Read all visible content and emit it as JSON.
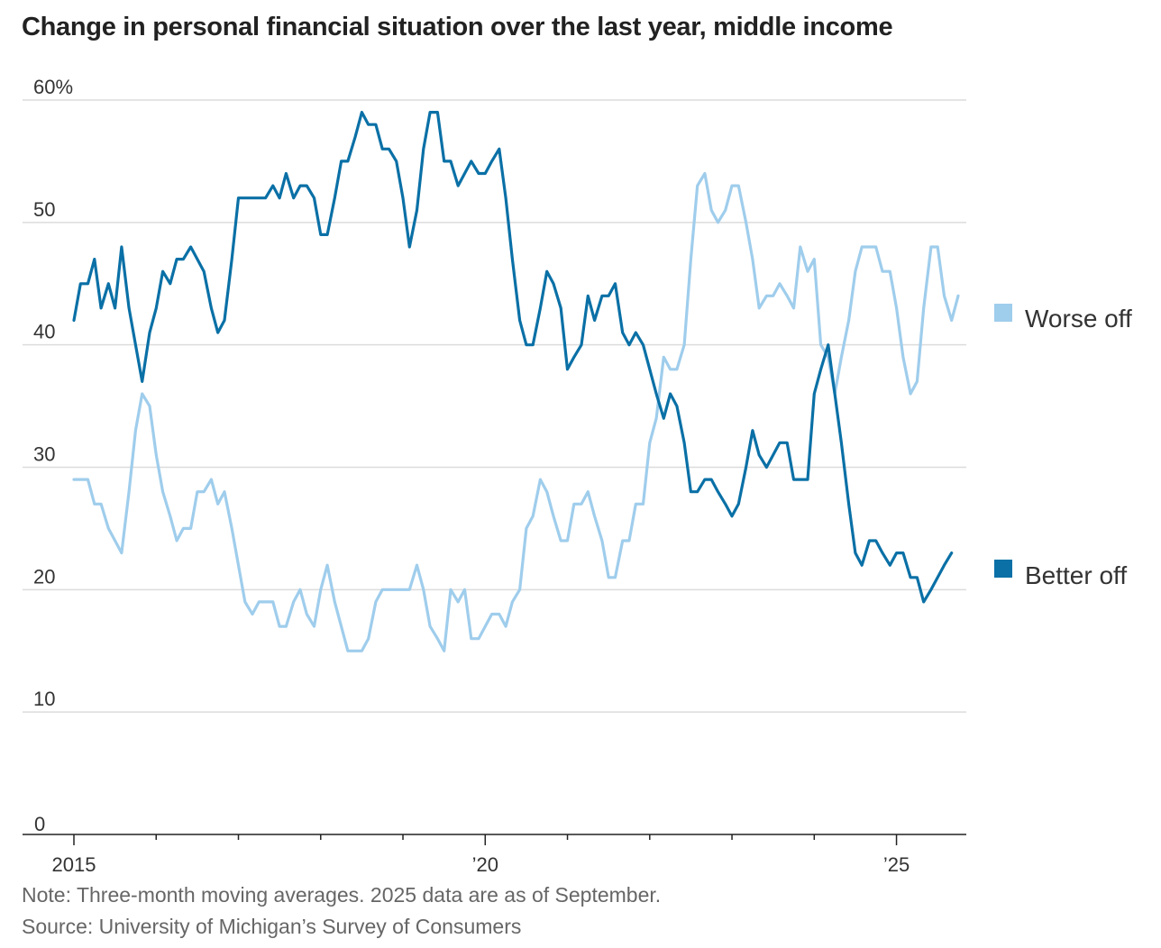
{
  "chart_data": {
    "type": "line",
    "title": "Change in personal financial situation over the last year, middle income",
    "note": "Note: Three-month moving averages. 2025 data are as of September.",
    "source": "Source: University of Michigan’s Survey of Consumers",
    "y_ticks": [
      "60%",
      "50",
      "40",
      "30",
      "20",
      "10",
      "0"
    ],
    "x_ticks": [
      "2015",
      "’20",
      "’25"
    ],
    "ylim": [
      0,
      60
    ],
    "xlim": [
      2015.0,
      2025.75
    ],
    "grid": true,
    "legend_position": "right",
    "series": [
      {
        "name": "Worse off",
        "color": "#9fcdec",
        "points": [
          [
            2015.0,
            29
          ],
          [
            2015.08,
            29
          ],
          [
            2015.17,
            29
          ],
          [
            2015.25,
            27
          ],
          [
            2015.33,
            27
          ],
          [
            2015.42,
            25
          ],
          [
            2015.5,
            24
          ],
          [
            2015.58,
            23
          ],
          [
            2015.67,
            28
          ],
          [
            2015.75,
            33
          ],
          [
            2015.83,
            36
          ],
          [
            2015.92,
            35
          ],
          [
            2016.0,
            31
          ],
          [
            2016.08,
            28
          ],
          [
            2016.17,
            26
          ],
          [
            2016.25,
            24
          ],
          [
            2016.33,
            25
          ],
          [
            2016.42,
            25
          ],
          [
            2016.5,
            28
          ],
          [
            2016.58,
            28
          ],
          [
            2016.67,
            29
          ],
          [
            2016.75,
            27
          ],
          [
            2016.83,
            28
          ],
          [
            2016.92,
            25
          ],
          [
            2017.0,
            22
          ],
          [
            2017.08,
            19
          ],
          [
            2017.17,
            18
          ],
          [
            2017.25,
            19
          ],
          [
            2017.33,
            19
          ],
          [
            2017.42,
            19
          ],
          [
            2017.5,
            17
          ],
          [
            2017.58,
            17
          ],
          [
            2017.67,
            19
          ],
          [
            2017.75,
            20
          ],
          [
            2017.83,
            18
          ],
          [
            2017.92,
            17
          ],
          [
            2018.0,
            20
          ],
          [
            2018.08,
            22
          ],
          [
            2018.17,
            19
          ],
          [
            2018.25,
            17
          ],
          [
            2018.33,
            15
          ],
          [
            2018.42,
            15
          ],
          [
            2018.5,
            15
          ],
          [
            2018.58,
            16
          ],
          [
            2018.67,
            19
          ],
          [
            2018.75,
            20
          ],
          [
            2018.83,
            20
          ],
          [
            2018.92,
            20
          ],
          [
            2019.0,
            20
          ],
          [
            2019.08,
            20
          ],
          [
            2019.17,
            22
          ],
          [
            2019.25,
            20
          ],
          [
            2019.33,
            17
          ],
          [
            2019.42,
            16
          ],
          [
            2019.5,
            15
          ],
          [
            2019.58,
            20
          ],
          [
            2019.67,
            19
          ],
          [
            2019.75,
            20
          ],
          [
            2019.83,
            16
          ],
          [
            2019.92,
            16
          ],
          [
            2020.0,
            17
          ],
          [
            2020.08,
            18
          ],
          [
            2020.17,
            18
          ],
          [
            2020.25,
            17
          ],
          [
            2020.33,
            19
          ],
          [
            2020.42,
            20
          ],
          [
            2020.5,
            25
          ],
          [
            2020.58,
            26
          ],
          [
            2020.67,
            29
          ],
          [
            2020.75,
            28
          ],
          [
            2020.83,
            26
          ],
          [
            2020.92,
            24
          ],
          [
            2021.0,
            24
          ],
          [
            2021.08,
            27
          ],
          [
            2021.17,
            27
          ],
          [
            2021.25,
            28
          ],
          [
            2021.33,
            26
          ],
          [
            2021.42,
            24
          ],
          [
            2021.5,
            21
          ],
          [
            2021.58,
            21
          ],
          [
            2021.67,
            24
          ],
          [
            2021.75,
            24
          ],
          [
            2021.83,
            27
          ],
          [
            2021.92,
            27
          ],
          [
            2022.0,
            32
          ],
          [
            2022.08,
            34
          ],
          [
            2022.17,
            39
          ],
          [
            2022.25,
            38
          ],
          [
            2022.33,
            38
          ],
          [
            2022.42,
            40
          ],
          [
            2022.5,
            47
          ],
          [
            2022.58,
            53
          ],
          [
            2022.67,
            54
          ],
          [
            2022.75,
            51
          ],
          [
            2022.83,
            50
          ],
          [
            2022.92,
            51
          ],
          [
            2023.0,
            53
          ],
          [
            2023.08,
            53
          ],
          [
            2023.17,
            50
          ],
          [
            2023.25,
            47
          ],
          [
            2023.33,
            43
          ],
          [
            2023.42,
            44
          ],
          [
            2023.5,
            44
          ],
          [
            2023.58,
            45
          ],
          [
            2023.67,
            44
          ],
          [
            2023.75,
            43
          ],
          [
            2023.83,
            48
          ],
          [
            2023.92,
            46
          ],
          [
            2024.0,
            47
          ],
          [
            2024.08,
            40
          ],
          [
            2024.17,
            39
          ],
          [
            2024.25,
            36
          ],
          [
            2024.33,
            39
          ],
          [
            2024.42,
            42
          ],
          [
            2024.5,
            46
          ],
          [
            2024.58,
            48
          ],
          [
            2024.67,
            48
          ],
          [
            2024.75,
            48
          ],
          [
            2024.83,
            46
          ],
          [
            2024.92,
            46
          ],
          [
            2025.0,
            43
          ],
          [
            2025.08,
            39
          ],
          [
            2025.17,
            36
          ],
          [
            2025.25,
            37
          ],
          [
            2025.33,
            43
          ],
          [
            2025.42,
            48
          ],
          [
            2025.5,
            48
          ],
          [
            2025.58,
            44
          ],
          [
            2025.67,
            42
          ],
          [
            2025.75,
            44
          ]
        ]
      },
      {
        "name": "Better off",
        "color": "#0a70a6",
        "points": [
          [
            2015.0,
            42
          ],
          [
            2015.08,
            45
          ],
          [
            2015.17,
            45
          ],
          [
            2015.25,
            47
          ],
          [
            2015.33,
            43
          ],
          [
            2015.42,
            45
          ],
          [
            2015.5,
            43
          ],
          [
            2015.58,
            48
          ],
          [
            2015.67,
            43
          ],
          [
            2015.75,
            40
          ],
          [
            2015.83,
            37
          ],
          [
            2015.92,
            41
          ],
          [
            2016.0,
            43
          ],
          [
            2016.08,
            46
          ],
          [
            2016.17,
            45
          ],
          [
            2016.25,
            47
          ],
          [
            2016.33,
            47
          ],
          [
            2016.42,
            48
          ],
          [
            2016.5,
            47
          ],
          [
            2016.58,
            46
          ],
          [
            2016.67,
            43
          ],
          [
            2016.75,
            41
          ],
          [
            2016.83,
            42
          ],
          [
            2016.92,
            47
          ],
          [
            2017.0,
            52
          ],
          [
            2017.08,
            52
          ],
          [
            2017.17,
            52
          ],
          [
            2017.25,
            52
          ],
          [
            2017.33,
            52
          ],
          [
            2017.42,
            53
          ],
          [
            2017.5,
            52
          ],
          [
            2017.58,
            54
          ],
          [
            2017.67,
            52
          ],
          [
            2017.75,
            53
          ],
          [
            2017.83,
            53
          ],
          [
            2017.92,
            52
          ],
          [
            2018.0,
            49
          ],
          [
            2018.08,
            49
          ],
          [
            2018.17,
            52
          ],
          [
            2018.25,
            55
          ],
          [
            2018.33,
            55
          ],
          [
            2018.42,
            57
          ],
          [
            2018.5,
            59
          ],
          [
            2018.58,
            58
          ],
          [
            2018.67,
            58
          ],
          [
            2018.75,
            56
          ],
          [
            2018.83,
            56
          ],
          [
            2018.92,
            55
          ],
          [
            2019.0,
            52
          ],
          [
            2019.08,
            48
          ],
          [
            2019.17,
            51
          ],
          [
            2019.25,
            56
          ],
          [
            2019.33,
            59
          ],
          [
            2019.42,
            59
          ],
          [
            2019.5,
            55
          ],
          [
            2019.58,
            55
          ],
          [
            2019.67,
            53
          ],
          [
            2019.75,
            54
          ],
          [
            2019.83,
            55
          ],
          [
            2019.92,
            54
          ],
          [
            2020.0,
            54
          ],
          [
            2020.08,
            55
          ],
          [
            2020.17,
            56
          ],
          [
            2020.25,
            52
          ],
          [
            2020.33,
            47
          ],
          [
            2020.42,
            42
          ],
          [
            2020.5,
            40
          ],
          [
            2020.58,
            40
          ],
          [
            2020.67,
            43
          ],
          [
            2020.75,
            46
          ],
          [
            2020.83,
            45
          ],
          [
            2020.92,
            43
          ],
          [
            2021.0,
            38
          ],
          [
            2021.08,
            39
          ],
          [
            2021.17,
            40
          ],
          [
            2021.25,
            44
          ],
          [
            2021.33,
            42
          ],
          [
            2021.42,
            44
          ],
          [
            2021.5,
            44
          ],
          [
            2021.58,
            45
          ],
          [
            2021.67,
            41
          ],
          [
            2021.75,
            40
          ],
          [
            2021.83,
            41
          ],
          [
            2021.92,
            40
          ],
          [
            2022.0,
            38
          ],
          [
            2022.08,
            36
          ],
          [
            2022.17,
            34
          ],
          [
            2022.25,
            36
          ],
          [
            2022.33,
            35
          ],
          [
            2022.42,
            32
          ],
          [
            2022.5,
            28
          ],
          [
            2022.58,
            28
          ],
          [
            2022.67,
            29
          ],
          [
            2022.75,
            29
          ],
          [
            2022.83,
            28
          ],
          [
            2022.92,
            27
          ],
          [
            2023.0,
            26
          ],
          [
            2023.08,
            27
          ],
          [
            2023.17,
            30
          ],
          [
            2023.25,
            33
          ],
          [
            2023.33,
            31
          ],
          [
            2023.42,
            30
          ],
          [
            2023.5,
            31
          ],
          [
            2023.58,
            32
          ],
          [
            2023.67,
            32
          ],
          [
            2023.75,
            29
          ],
          [
            2023.83,
            29
          ],
          [
            2023.92,
            29
          ],
          [
            2024.0,
            36
          ],
          [
            2024.08,
            38
          ],
          [
            2024.17,
            40
          ],
          [
            2024.25,
            36
          ],
          [
            2024.33,
            32
          ],
          [
            2024.42,
            27
          ],
          [
            2024.5,
            23
          ],
          [
            2024.58,
            22
          ],
          [
            2024.67,
            24
          ],
          [
            2024.75,
            24
          ],
          [
            2024.83,
            23
          ],
          [
            2024.92,
            22
          ],
          [
            2025.0,
            23
          ],
          [
            2025.08,
            23
          ],
          [
            2025.17,
            21
          ],
          [
            2025.25,
            21
          ],
          [
            2025.33,
            19
          ],
          [
            2025.42,
            20
          ],
          [
            2025.5,
            21
          ],
          [
            2025.58,
            22
          ],
          [
            2025.67,
            23
          ]
        ]
      }
    ]
  }
}
